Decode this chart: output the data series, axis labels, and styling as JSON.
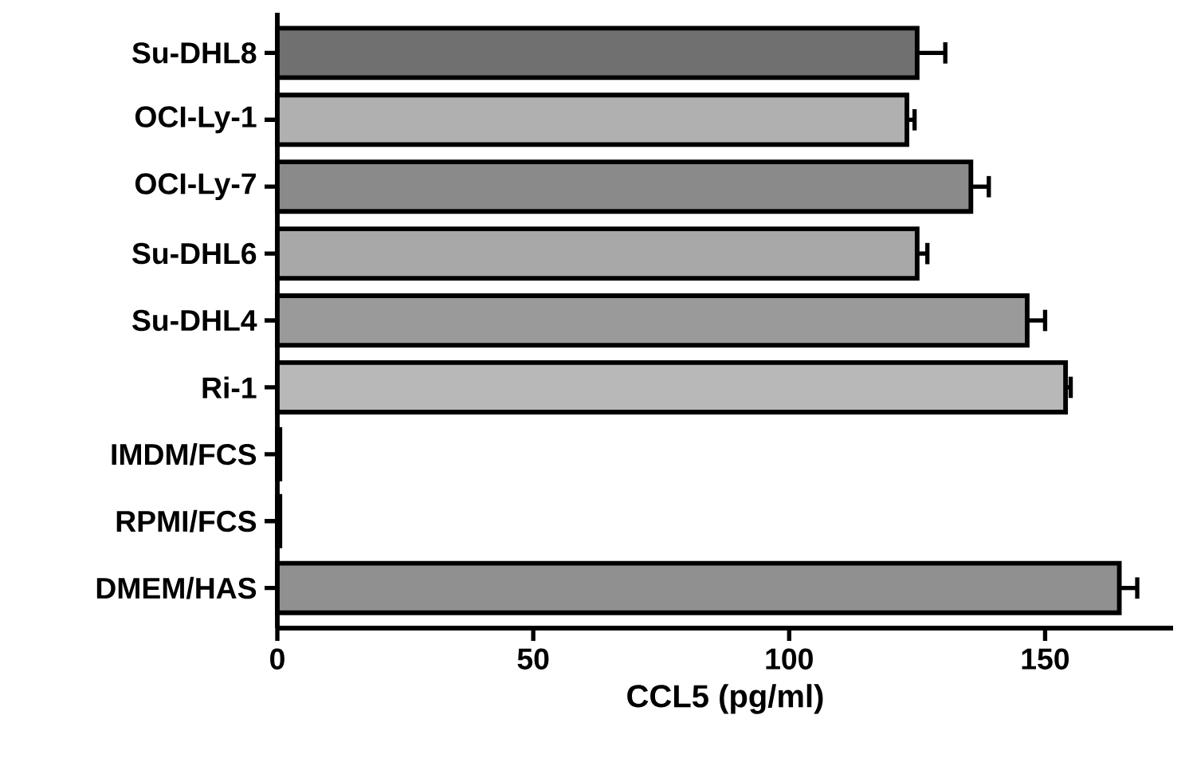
{
  "chart_data": {
    "type": "bar",
    "orientation": "horizontal",
    "xlabel": "CCL5 (pg/ml)",
    "categories": [
      "Su-DHL8",
      "OCI-Ly-1",
      "OCI-Ly-7",
      "Su-DHL6",
      "Su-DHL4",
      "Ri-1",
      "IMDM/FCS",
      "RPMI/FCS",
      "DMEM/HAS"
    ],
    "values": [
      125,
      123,
      135.5,
      125,
      146.5,
      154,
      0.5,
      0.5,
      164.5
    ],
    "errors": [
      5.5,
      1.5,
      3.5,
      2,
      3.5,
      1,
      null,
      null,
      3.5
    ],
    "colors": [
      "#707070",
      "#b0b0b0",
      "#8a8a8a",
      "#a8a8a8",
      "#9a9a9a",
      "#b8b8b8",
      "#000000",
      "#000000",
      "#909090"
    ],
    "xlim": [
      0,
      175
    ],
    "xticks": [
      0,
      50,
      100,
      150
    ]
  }
}
